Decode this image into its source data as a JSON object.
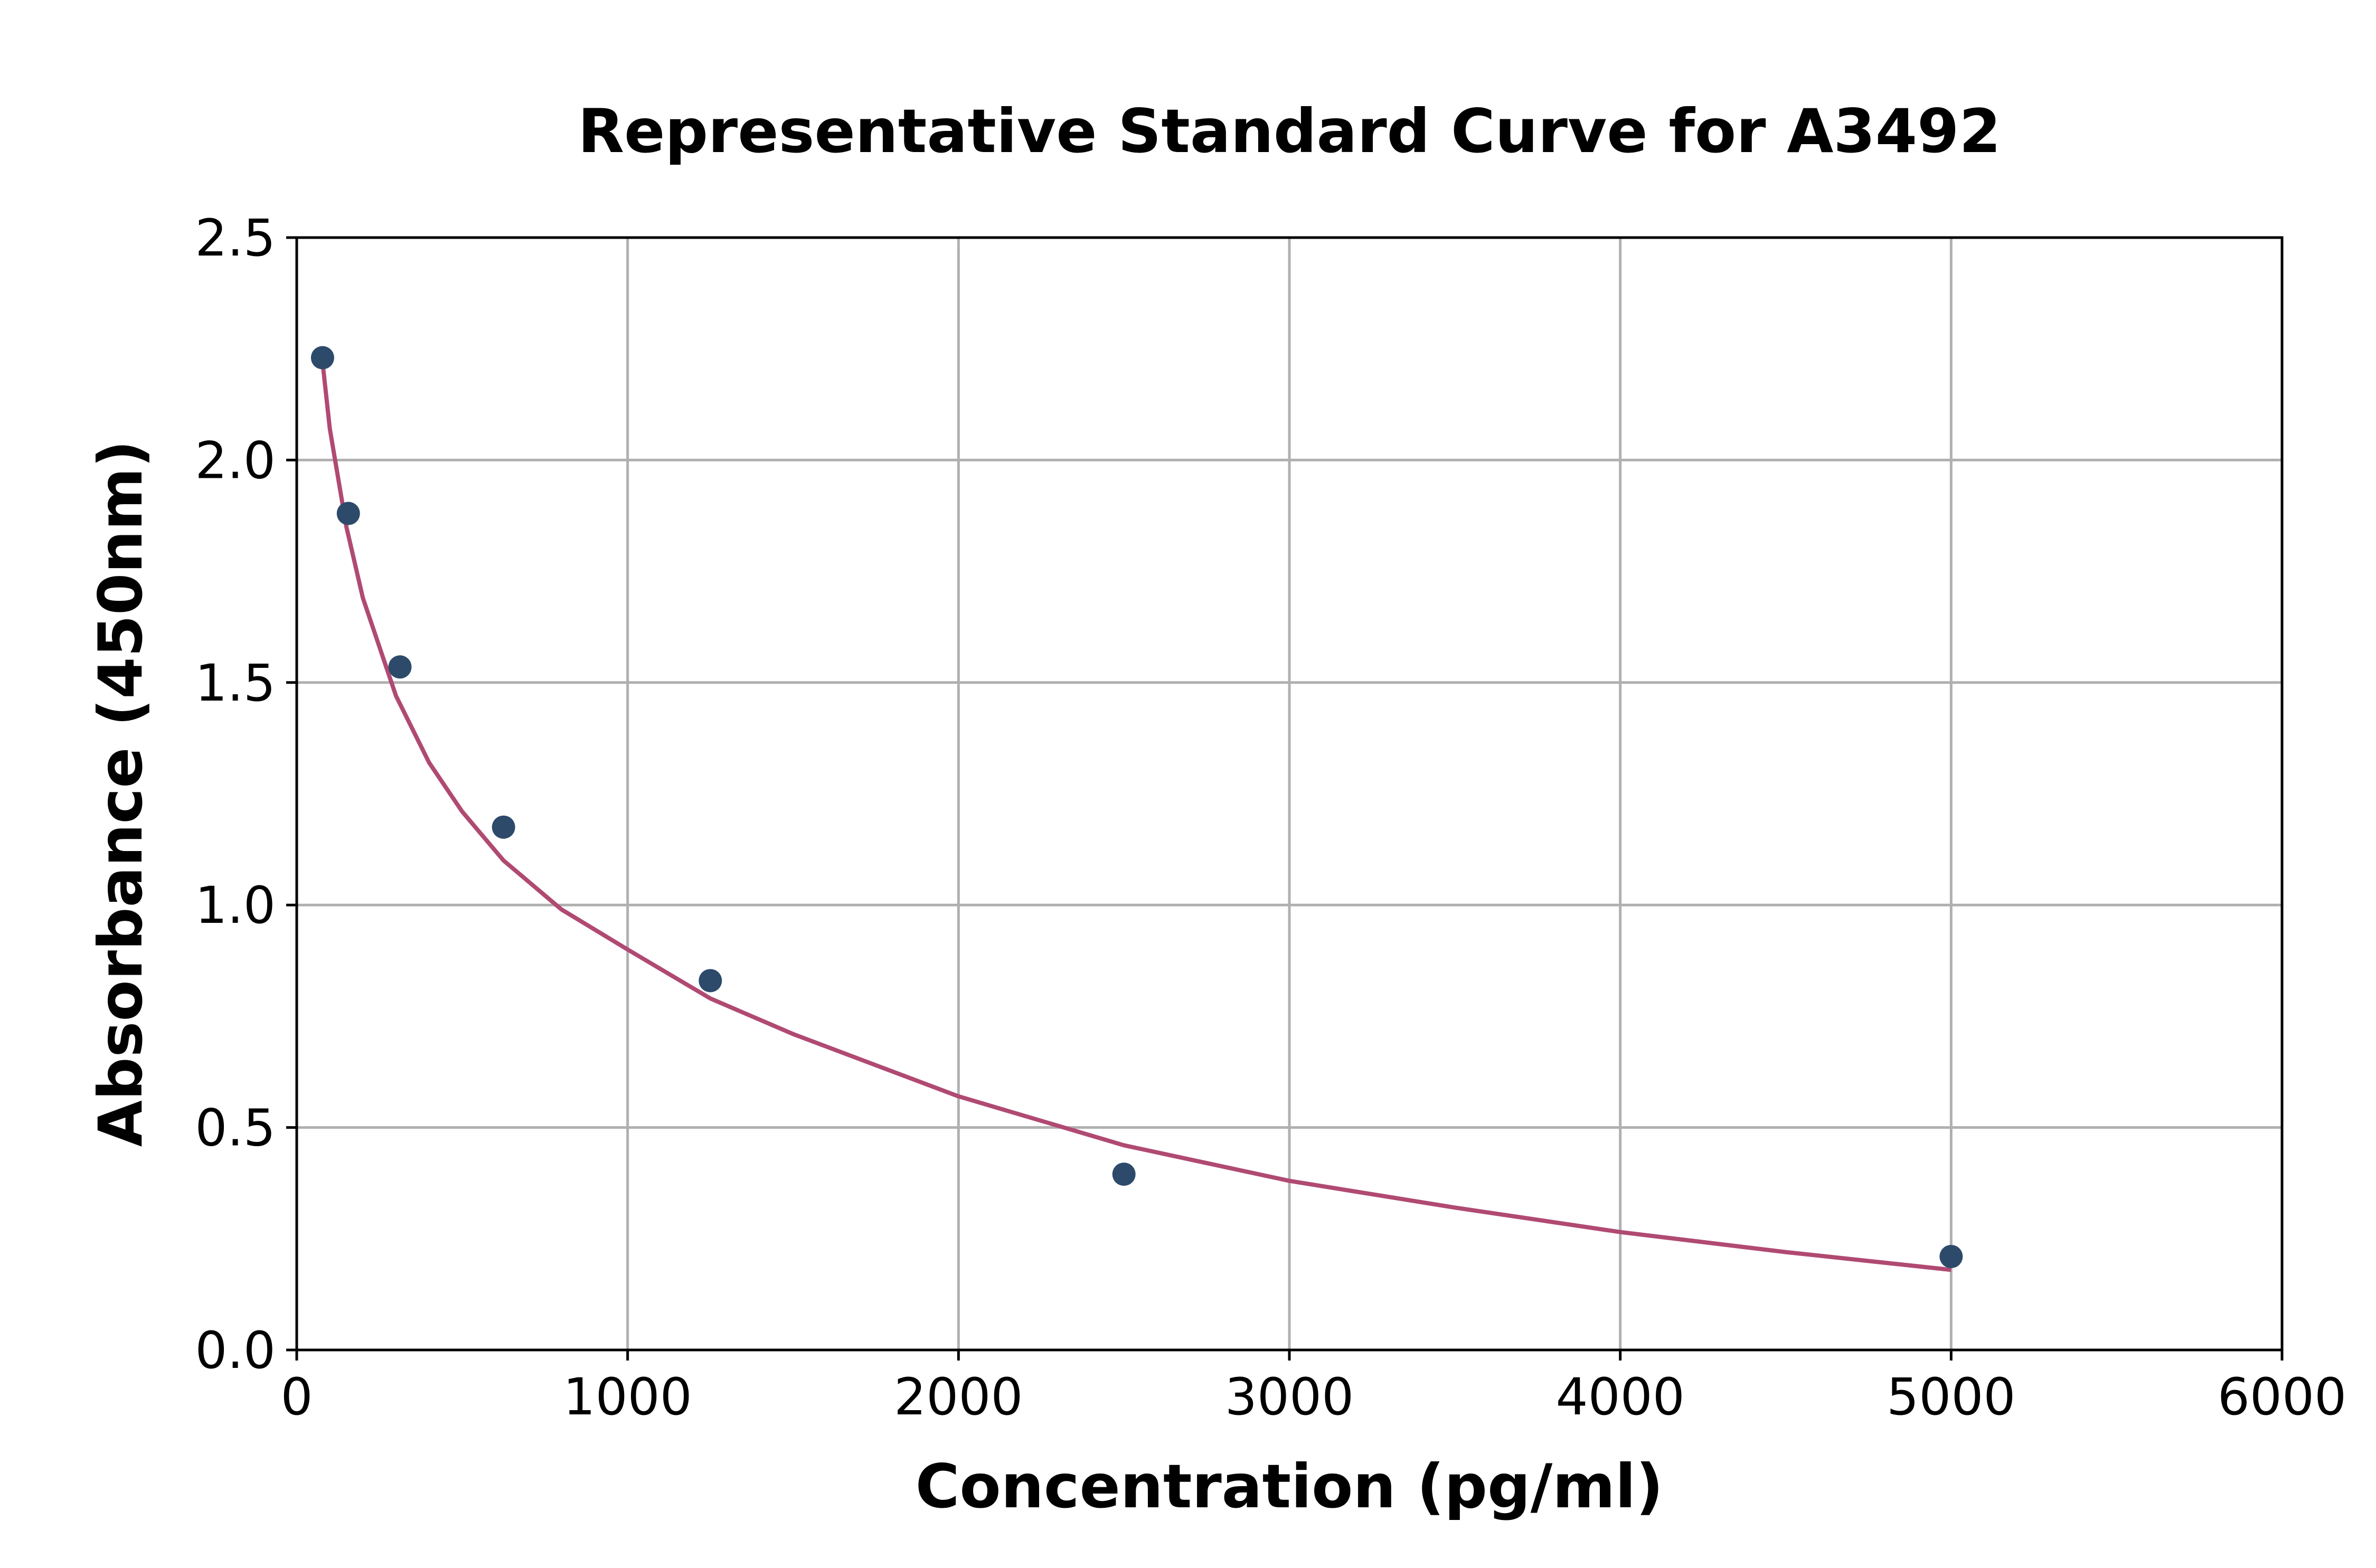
{
  "chart_data": {
    "type": "scatter",
    "title": "Representative Standard Curve for A3492",
    "xlabel": "Concentration (pg/ml)",
    "ylabel": "Absorbance (450nm)",
    "xlim": [
      0,
      6000
    ],
    "ylim": [
      0,
      2.5
    ],
    "xticks": [
      0,
      1000,
      2000,
      3000,
      4000,
      5000,
      6000
    ],
    "xtick_labels": [
      "0",
      "1000",
      "2000",
      "3000",
      "4000",
      "5000",
      "6000"
    ],
    "yticks": [
      0,
      0.5,
      1.0,
      1.5,
      2.0,
      2.5
    ],
    "ytick_labels": [
      "0.0",
      "0.5",
      "1.0",
      "1.5",
      "2.0",
      "2.5"
    ],
    "grid": true,
    "series": [
      {
        "kind": "points",
        "color": "#2d4a6b",
        "x": [
          78,
          156,
          312,
          625,
          1250,
          2500,
          5000
        ],
        "y": [
          2.23,
          1.88,
          1.535,
          1.175,
          0.83,
          0.395,
          0.21
        ]
      },
      {
        "kind": "fit-line",
        "color": "#b04a72",
        "x": [
          78,
          100,
          150,
          200,
          300,
          400,
          500,
          625,
          800,
          1000,
          1250,
          1500,
          2000,
          2500,
          3000,
          3500,
          4000,
          4500,
          5000
        ],
        "y": [
          2.22,
          2.07,
          1.85,
          1.69,
          1.47,
          1.32,
          1.21,
          1.1,
          0.99,
          0.9,
          0.79,
          0.71,
          0.57,
          0.46,
          0.38,
          0.32,
          0.265,
          0.22,
          0.18
        ]
      }
    ]
  }
}
